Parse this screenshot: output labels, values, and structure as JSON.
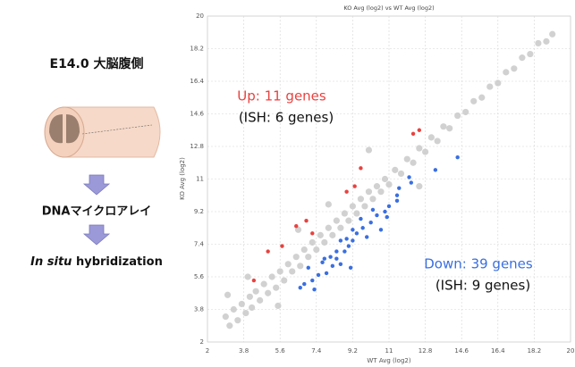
{
  "panel": {
    "heading": "E14.0 大脳腹側",
    "step1": "DNAマイクロアレイ",
    "step2_italic": "In situ",
    "step2_rest": "hybridization"
  },
  "chart_data": {
    "type": "scatter",
    "title": "KO Avg (log2) vs WT Avg (log2)",
    "x_label": "WT Avg (log2)",
    "y_label": "KO Avg (log2)",
    "xlim": [
      2,
      20
    ],
    "ylim": [
      2,
      20
    ],
    "xticks": [
      2,
      3.8,
      5.6,
      7.4,
      9.2,
      11,
      12.8,
      14.6,
      16.4,
      18.2,
      20
    ],
    "yticks": [
      2,
      3.8,
      5.6,
      7.4,
      9.2,
      11,
      12.8,
      14.6,
      16.4,
      18.2,
      20
    ],
    "grid": true,
    "series": [
      {
        "color": "#c9c9c9",
        "x": [
          2.9,
          3.1,
          3.3,
          3.5,
          3.7,
          3.9,
          4.1,
          4.2,
          4.4,
          4.6,
          4.8,
          5.0,
          5.2,
          5.4,
          5.6,
          5.8,
          6.0,
          6.2,
          6.4,
          6.6,
          6.8,
          7.0,
          7.2,
          7.4,
          7.6,
          7.8,
          8.0,
          8.2,
          8.4,
          8.6,
          8.8,
          9.0,
          9.2,
          9.4,
          9.6,
          9.8,
          10.0,
          10.2,
          10.4,
          10.6,
          10.8,
          11.0,
          11.3,
          11.6,
          11.9,
          12.2,
          12.5,
          12.8,
          13.1,
          13.4,
          13.7,
          14.0,
          14.4,
          14.8,
          15.2,
          15.6,
          16.0,
          16.4,
          16.8,
          17.2,
          17.6,
          18.0,
          18.4,
          18.8,
          19.1,
          4.0,
          6.5,
          5.5,
          10.0,
          12.5,
          3.0,
          8.0
        ],
        "values": [
          3.4,
          2.9,
          3.8,
          3.2,
          4.1,
          3.6,
          4.5,
          3.9,
          4.8,
          4.3,
          5.2,
          4.7,
          5.6,
          5.0,
          5.9,
          5.4,
          6.3,
          5.9,
          6.7,
          6.2,
          7.1,
          6.7,
          7.5,
          7.1,
          7.9,
          7.5,
          8.3,
          7.9,
          8.7,
          8.3,
          9.1,
          8.7,
          9.5,
          9.1,
          9.9,
          9.5,
          10.3,
          9.9,
          10.6,
          10.3,
          11.0,
          10.7,
          11.5,
          11.3,
          12.1,
          11.9,
          12.7,
          12.5,
          13.3,
          13.1,
          13.9,
          13.8,
          14.5,
          14.7,
          15.3,
          15.5,
          16.1,
          16.3,
          16.9,
          17.1,
          17.7,
          17.9,
          18.5,
          18.6,
          19.0,
          5.6,
          8.2,
          4.0,
          12.6,
          10.6,
          4.6,
          9.6
        ]
      },
      {
        "color": "#e8423f",
        "x": [
          12.2,
          12.5,
          9.6,
          9.3,
          8.9,
          6.9,
          6.4,
          7.2,
          5.7,
          5.0,
          4.3
        ],
        "values": [
          13.5,
          13.7,
          11.6,
          10.6,
          10.3,
          8.7,
          8.4,
          8.0,
          7.3,
          7.0,
          5.4
        ]
      },
      {
        "color": "#3a6fe0",
        "x": [
          14.4,
          13.3,
          12.0,
          11.5,
          11.4,
          11.0,
          10.8,
          10.4,
          10.9,
          10.1,
          10.6,
          9.7,
          9.4,
          9.9,
          9.2,
          9.0,
          8.6,
          8.8,
          8.4,
          8.1,
          8.6,
          8.2,
          7.7,
          7.9,
          7.5,
          8.9,
          7.0,
          7.2,
          6.8,
          6.6,
          7.3,
          11.4,
          10.2,
          9.6,
          9.2,
          7.8,
          8.4,
          9.1,
          12.1
        ],
        "values": [
          12.2,
          11.5,
          11.1,
          10.5,
          10.1,
          9.5,
          9.2,
          9.0,
          8.9,
          8.6,
          8.2,
          8.3,
          8.0,
          7.8,
          7.6,
          7.3,
          7.6,
          7.0,
          6.6,
          6.7,
          6.3,
          6.2,
          6.4,
          5.8,
          5.7,
          7.7,
          6.1,
          5.4,
          5.2,
          5.0,
          4.9,
          9.8,
          9.3,
          8.8,
          8.2,
          6.6,
          7.0,
          6.1,
          10.8
        ]
      }
    ],
    "annotations": [
      {
        "text": "Up: 11 genes",
        "series": 1
      },
      {
        "text": "(ISH: 6 genes)"
      },
      {
        "text": "Down: 39 genes",
        "series": 2
      },
      {
        "text": "(ISH: 9 genes)"
      }
    ]
  }
}
